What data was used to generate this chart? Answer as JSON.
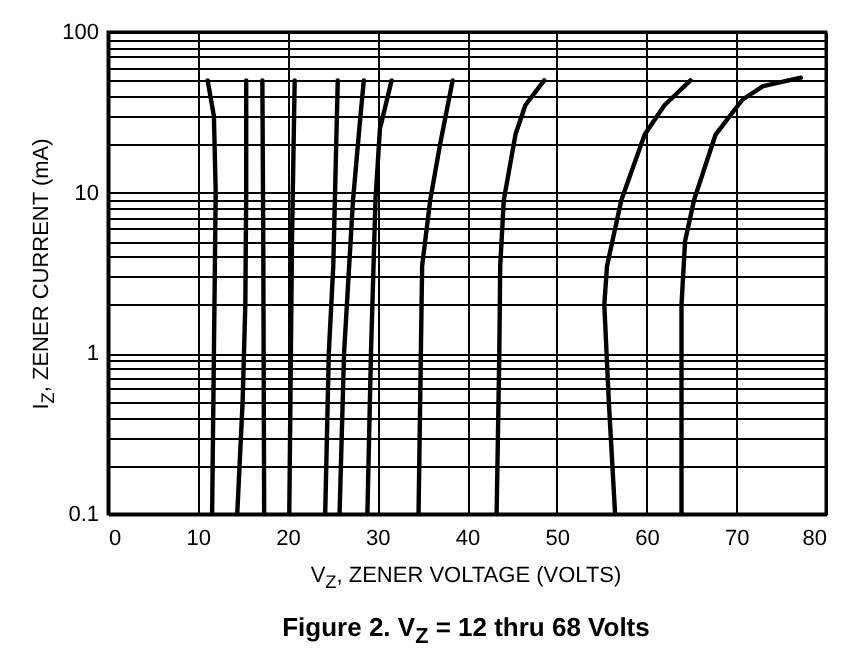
{
  "chart_data": {
    "type": "line",
    "title": "Figure 2. V$_{Z}$ = 12 thru 68 Volts",
    "xlabel": "V$_{Z}$, ZENER VOLTAGE (VOLTS)",
    "ylabel": "I$_{Z}$, ZENER CURRENT (mA)",
    "log": "y",
    "grid": true,
    "xlim": [
      0,
      80
    ],
    "xticks": [
      0,
      10,
      20,
      30,
      40,
      50,
      60,
      70,
      80
    ],
    "ylim": [
      0.1,
      100
    ],
    "yticks": [
      0.1,
      {
        "value": 0.2,
        "label": null
      },
      {
        "value": 0.3,
        "label": null
      },
      {
        "value": 0.4,
        "label": null
      },
      {
        "value": 0.5,
        "label": null
      },
      {
        "value": 0.6,
        "label": null
      },
      {
        "value": 0.7,
        "label": null
      },
      {
        "value": 0.8,
        "label": null
      },
      {
        "value": 0.9,
        "label": null
      },
      1,
      {
        "value": 2,
        "label": null
      },
      {
        "value": 3,
        "label": null
      },
      {
        "value": 4,
        "label": null
      },
      {
        "value": 5,
        "label": null
      },
      {
        "value": 6,
        "label": null
      },
      {
        "value": 7,
        "label": null
      },
      {
        "value": 8,
        "label": null
      },
      {
        "value": 9,
        "label": null
      },
      10,
      {
        "value": 20,
        "label": null
      },
      {
        "value": 30,
        "label": null
      },
      {
        "value": 40,
        "label": null
      },
      {
        "value": 50,
        "label": null
      },
      {
        "value": 60,
        "label": null
      },
      {
        "value": 70,
        "label": null
      },
      {
        "value": 80,
        "label": null
      },
      {
        "value": 90,
        "label": null
      },
      100
    ],
    "series": [
      {
        "color": "#000000",
        "x": [
          11.6,
          11.8,
          12.0,
          11.8,
          11.1
        ],
        "values": [
          0.1,
          1,
          10,
          30,
          50
        ]
      },
      {
        "color": "#000000",
        "x": [
          14.4,
          15.0,
          15.3,
          15.4,
          15.4
        ],
        "values": [
          0.1,
          0.5,
          2,
          10,
          50
        ]
      },
      {
        "color": "#000000",
        "x": [
          17.4,
          17.3,
          17.2
        ],
        "values": [
          0.1,
          5,
          50
        ]
      },
      {
        "color": "#000000",
        "x": [
          20.2,
          20.5,
          20.8
        ],
        "values": [
          0.1,
          5,
          50
        ]
      },
      {
        "color": "#000000",
        "x": [
          24.2,
          24.6,
          25.1,
          25.6
        ],
        "values": [
          0.1,
          1,
          3.5,
          50
        ]
      },
      {
        "color": "#000000",
        "x": [
          25.8,
          26.3,
          27.3,
          28.0,
          28.5
        ],
        "values": [
          0.1,
          1,
          9,
          25,
          50
        ]
      },
      {
        "color": "#000000",
        "x": [
          28.9,
          29.3,
          29.8,
          30.3,
          31.6
        ],
        "values": [
          0.1,
          1,
          9,
          25,
          50
        ]
      },
      {
        "color": "#000000",
        "x": [
          34.6,
          35.0,
          35.9,
          37.0,
          38.4
        ],
        "values": [
          0.1,
          3.5,
          9,
          20,
          50
        ]
      },
      {
        "color": "#000000",
        "x": [
          43.3,
          43.6,
          43.7,
          44.1,
          45.4,
          46.5,
          48.6
        ],
        "values": [
          0.1,
          1,
          3.5,
          9,
          23,
          35,
          50
        ]
      },
      {
        "color": "#000000",
        "x": [
          56.5,
          55.8,
          55.3,
          55.6,
          57.2,
          59.8,
          62.0,
          64.9
        ],
        "values": [
          0.1,
          0.5,
          2,
          3.5,
          9,
          23,
          35,
          50
        ]
      },
      {
        "color": "#000000",
        "x": [
          63.9,
          63.9,
          64.3,
          65.3,
          67.7,
          70.7,
          73.0,
          77.2
        ],
        "values": [
          0.1,
          2,
          5,
          9,
          23,
          38,
          46,
          52
        ]
      }
    ]
  }
}
